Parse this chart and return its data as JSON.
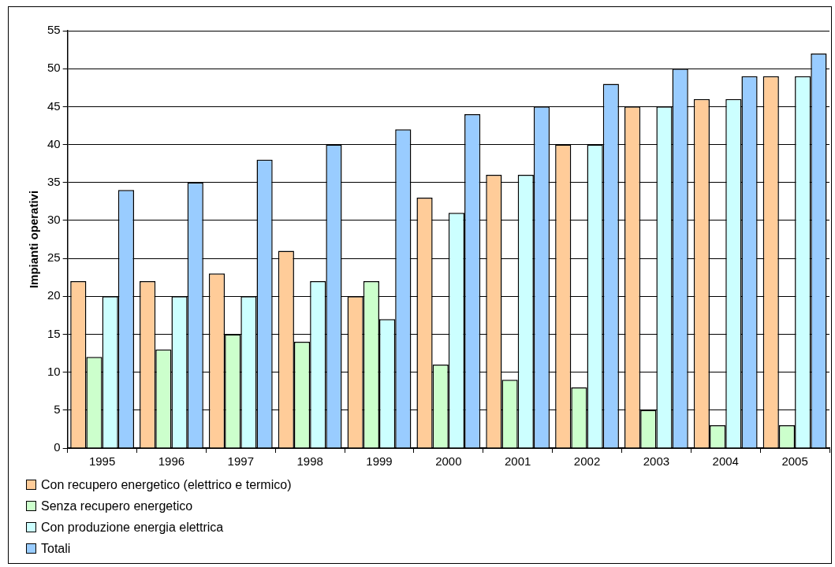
{
  "chart_data": {
    "type": "bar",
    "ylabel": "Impianti operativi",
    "categories": [
      "1995",
      "1996",
      "1997",
      "1998",
      "1999",
      "2000",
      "2001",
      "2002",
      "2003",
      "2004",
      "2005"
    ],
    "series": [
      {
        "name": "Con recupero energetico (elettrico e termico)",
        "color": "#ffcc99",
        "values": [
          22,
          22,
          23,
          26,
          20,
          33,
          36,
          40,
          45,
          46,
          49
        ]
      },
      {
        "name": "Senza recupero energetico",
        "color": "#ccffcc",
        "values": [
          12,
          13,
          15,
          14,
          22,
          11,
          9,
          8,
          5,
          3,
          3
        ]
      },
      {
        "name": "Con produzione energia elettrica",
        "color": "#ccffff",
        "values": [
          20,
          20,
          20,
          22,
          17,
          31,
          36,
          40,
          45,
          46,
          49
        ]
      },
      {
        "name": "Totali",
        "color": "#99ccff",
        "values": [
          34,
          35,
          38,
          40,
          42,
          44,
          45,
          48,
          50,
          49,
          52
        ]
      }
    ],
    "ylim": [
      0,
      55
    ],
    "yticks": [
      0,
      5,
      10,
      15,
      20,
      25,
      30,
      35,
      40,
      45,
      50,
      55
    ],
    "grid": "y",
    "legend": "bottom left"
  }
}
